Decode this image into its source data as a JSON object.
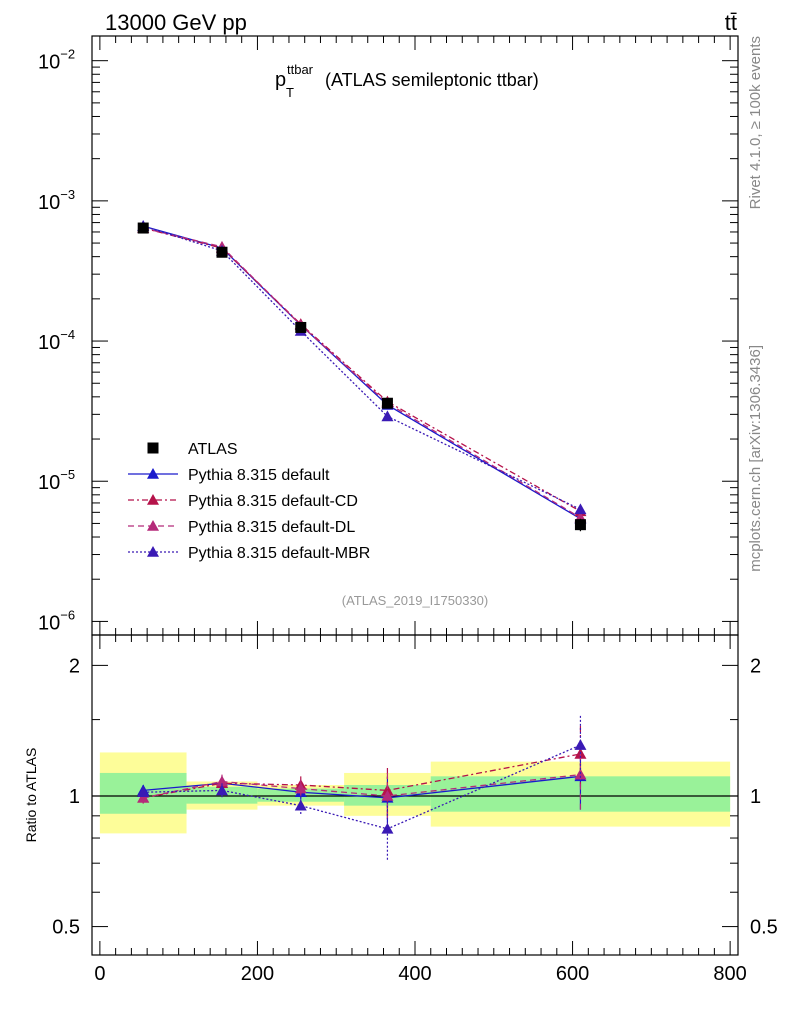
{
  "header": {
    "energy_label": "13000 GeV pp",
    "process_label": "tt̄"
  },
  "side_labels": {
    "rivet": "Rivet 4.1.0, ≥ 100k events",
    "mcplots": "mcplots.cern.ch [arXiv:1306.3436]"
  },
  "chart_data": [
    {
      "type": "line",
      "title_main": "p",
      "title_sub": "T",
      "title_sup": "ttbar",
      "title_rest": "(ATLAS semileptonic ttbar)",
      "analysis_id": "(ATLAS_2019_I1750330)",
      "yscale": "log",
      "ylim": [
        8e-07,
        0.015
      ],
      "xlim": [
        -10,
        810
      ],
      "ytick_labels": [
        {
          "base": "10",
          "exp": "−2",
          "value": 0.01
        },
        {
          "base": "10",
          "exp": "−3",
          "value": 0.001
        },
        {
          "base": "10",
          "exp": "−4",
          "value": 0.0001
        },
        {
          "base": "10",
          "exp": "−5",
          "value": 1e-05
        },
        {
          "base": "10",
          "exp": "−6",
          "value": 1e-06
        }
      ],
      "legend_position": "bottom-left",
      "x": [
        55,
        155,
        255,
        365,
        610
      ],
      "data": {
        "name": "ATLAS",
        "values": [
          0.00064,
          0.00043,
          0.000125,
          3.6e-05,
          4.9e-06
        ],
        "errors": [
          3e-05,
          2e-05,
          8e-06,
          3e-06,
          5e-07
        ]
      },
      "series": [
        {
          "name": "Pythia 8.315 default",
          "color": "#1a1acc",
          "dash": "",
          "values": [
            0.00066,
            0.00046,
            0.00013,
            3.5e-05,
            5.4e-06
          ]
        },
        {
          "name": "Pythia 8.315 default-CD",
          "color": "#b5124a",
          "dash": "6,3,2,3",
          "values": [
            0.00064,
            0.00046,
            0.000132,
            3.7e-05,
            6.1e-06
          ]
        },
        {
          "name": "Pythia 8.315 default-DL",
          "color": "#b52a7a",
          "dash": "6,4",
          "values": [
            0.00064,
            0.00047,
            0.00013,
            3.6e-05,
            5.5e-06
          ]
        },
        {
          "name": "Pythia 8.315 default-MBR",
          "color": "#3a1ab5",
          "dash": "2,2",
          "values": [
            0.00066,
            0.00044,
            0.000118,
            2.9e-05,
            6.3e-06
          ]
        }
      ]
    },
    {
      "type": "line",
      "ylabel": "Ratio to ATLAS",
      "xlabel": "",
      "ylim": [
        0.43,
        2.35
      ],
      "xlim": [
        -10,
        810
      ],
      "ytick_labels": [
        "0.5",
        "1",
        "2"
      ],
      "ytick_values": [
        0.5,
        1,
        2
      ],
      "xtick_labels": [
        "0",
        "200",
        "400",
        "600",
        "800"
      ],
      "xtick_values": [
        0,
        200,
        400,
        600,
        800
      ],
      "bands": [
        {
          "x0": 0,
          "x1": 110,
          "inner": [
            0.91,
            1.13
          ],
          "outer": [
            0.82,
            1.26
          ]
        },
        {
          "x0": 110,
          "x1": 200,
          "inner": [
            0.96,
            1.05
          ],
          "outer": [
            0.93,
            1.08
          ]
        },
        {
          "x0": 200,
          "x1": 310,
          "inner": [
            0.97,
            1.04
          ],
          "outer": [
            0.95,
            1.06
          ]
        },
        {
          "x0": 310,
          "x1": 420,
          "inner": [
            0.95,
            1.06
          ],
          "outer": [
            0.9,
            1.13
          ]
        },
        {
          "x0": 420,
          "x1": 800,
          "inner": [
            0.92,
            1.11
          ],
          "outer": [
            0.85,
            1.2
          ]
        }
      ],
      "x": [
        55,
        155,
        255,
        365,
        610
      ],
      "series": [
        {
          "name": "Pythia 8.315 default",
          "color": "#1a1acc",
          "dash": "",
          "values": [
            1.03,
            1.07,
            1.02,
            0.99,
            1.11
          ],
          "errors": [
            0.03,
            0.04,
            0.04,
            0.12,
            0.18
          ]
        },
        {
          "name": "Pythia 8.315 default-CD",
          "color": "#b5124a",
          "dash": "6,3,2,3",
          "values": [
            0.99,
            1.07,
            1.06,
            1.03,
            1.25
          ],
          "errors": [
            0.03,
            0.04,
            0.05,
            0.13,
            0.2
          ]
        },
        {
          "name": "Pythia 8.315 default-DL",
          "color": "#b52a7a",
          "dash": "6,4",
          "values": [
            0.99,
            1.08,
            1.04,
            1.0,
            1.12
          ],
          "errors": [
            0.03,
            0.04,
            0.05,
            0.13,
            0.2
          ]
        },
        {
          "name": "Pythia 8.315 default-MBR",
          "color": "#3a1ab5",
          "dash": "2,2",
          "values": [
            1.02,
            1.03,
            0.95,
            0.84,
            1.31
          ],
          "errors": [
            0.03,
            0.04,
            0.05,
            0.13,
            0.22
          ]
        }
      ]
    }
  ],
  "colors": {
    "band_inner": "#99f299",
    "band_outer": "#fdfd99",
    "data_marker": "#000000",
    "axis": "#000000",
    "side_text": "#888888",
    "analysis_text": "#999999"
  }
}
